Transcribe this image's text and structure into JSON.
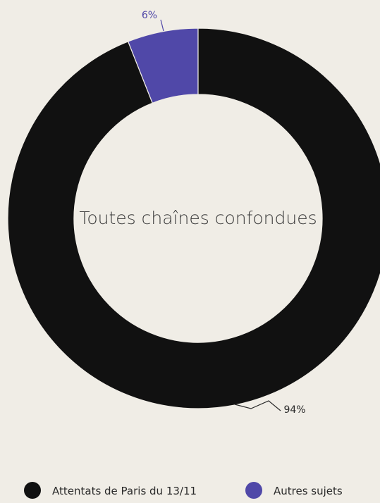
{
  "chart_data": {
    "type": "pie",
    "center_label": "Toutes chaînes confondues",
    "slices": [
      {
        "name": "Autres sujets",
        "value": 6,
        "label": "6%",
        "color": "#5048a8",
        "label_color": "#5048a8"
      },
      {
        "name": "Attentats de Paris du 13/11",
        "value": 94,
        "label": "94%",
        "color": "#111111",
        "label_color": "#2a2a2a"
      }
    ],
    "legend": {
      "placement": "bottom",
      "items": [
        {
          "name": "Attentats de Paris du 13/11",
          "color": "#111111"
        },
        {
          "name": "Autres sujets",
          "color": "#5048a8"
        }
      ]
    }
  }
}
